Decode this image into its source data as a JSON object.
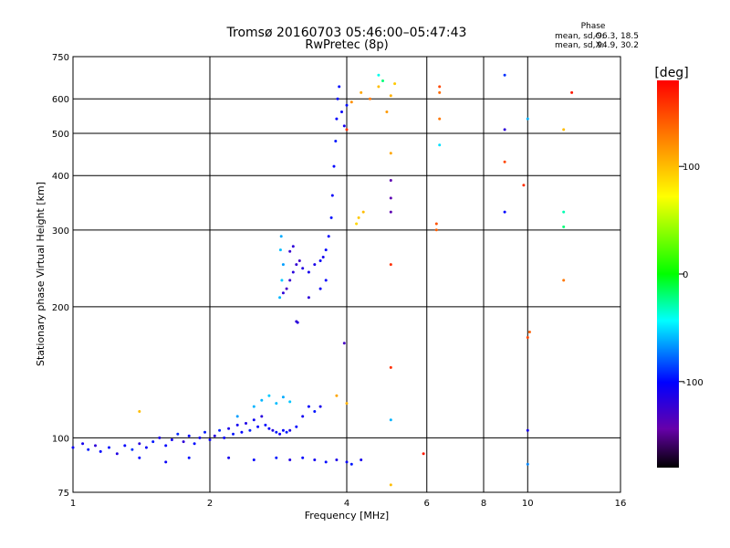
{
  "chart_data": {
    "type": "scatter",
    "title": "Tromsø 20160703 05:46:00–05:47:43",
    "subtitle": "RwPretec (8p)",
    "xlabel": "Frequency [MHz]",
    "ylabel": "Stationary phase Virtual Height [km]",
    "x_scale": "log",
    "y_scale": "log",
    "xlim": [
      1,
      16
    ],
    "ylim": [
      75,
      750
    ],
    "x_ticks": [
      1,
      2,
      4,
      6,
      8,
      10,
      16
    ],
    "x_tick_labels": [
      "1",
      "2",
      "4",
      "6",
      "8",
      "10",
      "16"
    ],
    "y_ticks": [
      75,
      100,
      200,
      300,
      400,
      500,
      600,
      750
    ],
    "y_tick_labels": [
      "75",
      "100",
      "200",
      "300",
      "400",
      "500",
      "600",
      "750"
    ],
    "grid": true,
    "stats": {
      "heading": "Phase",
      "o_label": "mean, sd,O:",
      "o_values": "-96.3, 18.5",
      "x_label": "mean, sd,X:",
      "x_values": "94.9, 30.2"
    },
    "colorbar": {
      "label": "[deg]",
      "range": [
        -180,
        180
      ],
      "ticks": [
        100,
        0,
        -100
      ],
      "tick_labels": [
        "100",
        "0",
        "-100"
      ],
      "colors": [
        "#ff0000",
        "#ff8000",
        "#ffff00",
        "#00ff00",
        "#00ffff",
        "#0000ff",
        "#6600aa",
        "#000000"
      ]
    },
    "series": [
      {
        "role": "E and F1 region O-mode traces (phase ~ -100 deg)",
        "points": [
          [
            1.0,
            95,
            -105
          ],
          [
            1.05,
            97,
            -110
          ],
          [
            1.08,
            94,
            -95
          ],
          [
            1.12,
            96,
            -120
          ],
          [
            1.15,
            93,
            -100
          ],
          [
            1.2,
            95,
            -98
          ],
          [
            1.25,
            92,
            -115
          ],
          [
            1.3,
            96,
            -102
          ],
          [
            1.35,
            94,
            -90
          ],
          [
            1.4,
            97,
            -118
          ],
          [
            1.45,
            95,
            -104
          ],
          [
            1.5,
            98,
            -96
          ],
          [
            1.55,
            100,
            -112
          ],
          [
            1.6,
            96,
            -100
          ],
          [
            1.65,
            99,
            -108
          ],
          [
            1.7,
            102,
            -92
          ],
          [
            1.75,
            98,
            -120
          ],
          [
            1.8,
            101,
            -101
          ],
          [
            1.85,
            97,
            -99
          ],
          [
            1.9,
            100,
            -110
          ],
          [
            1.95,
            103,
            -95
          ],
          [
            2.0,
            99,
            -105
          ],
          [
            2.05,
            101,
            -117
          ],
          [
            2.1,
            104,
            -93
          ],
          [
            2.15,
            100,
            -102
          ],
          [
            2.2,
            105,
            -111
          ],
          [
            2.25,
            102,
            -97
          ],
          [
            2.3,
            107,
            -108
          ],
          [
            2.35,
            103,
            -100
          ],
          [
            2.4,
            108,
            -114
          ],
          [
            2.45,
            104,
            -94
          ],
          [
            2.5,
            110,
            -106
          ],
          [
            2.55,
            106,
            -100
          ],
          [
            2.6,
            112,
            -118
          ],
          [
            2.65,
            107,
            -98
          ],
          [
            2.7,
            105,
            -103
          ],
          [
            2.75,
            104,
            -115
          ],
          [
            2.8,
            103,
            -96
          ],
          [
            2.85,
            102,
            -109
          ],
          [
            2.9,
            104,
            -101
          ],
          [
            2.95,
            103,
            -95
          ],
          [
            3.0,
            104,
            -112
          ],
          [
            3.1,
            106,
            -100
          ],
          [
            3.2,
            112,
            -108
          ],
          [
            3.3,
            118,
            -102
          ],
          [
            3.4,
            115,
            -97
          ],
          [
            3.5,
            118,
            -110
          ],
          [
            1.4,
            90,
            -100
          ],
          [
            1.6,
            88,
            -105
          ],
          [
            1.8,
            90,
            -98
          ],
          [
            2.2,
            90,
            -110
          ],
          [
            2.5,
            89,
            -102
          ],
          [
            2.8,
            90,
            -96
          ],
          [
            3.0,
            89,
            -115
          ],
          [
            3.2,
            90,
            -100
          ],
          [
            3.4,
            89,
            -108
          ],
          [
            3.6,
            88,
            -99
          ],
          [
            3.8,
            89,
            -112
          ],
          [
            4.0,
            88,
            -104
          ],
          [
            4.1,
            87,
            -96
          ],
          [
            4.3,
            89,
            -110
          ],
          [
            2.6,
            122,
            -60
          ],
          [
            2.7,
            125,
            -55
          ],
          [
            2.8,
            120,
            -58
          ],
          [
            2.9,
            124,
            -62
          ],
          [
            3.0,
            121,
            -56
          ],
          [
            2.3,
            112,
            -65
          ],
          [
            2.5,
            118,
            -60
          ],
          [
            2.85,
            210,
            -60
          ],
          [
            2.88,
            230,
            -55
          ],
          [
            2.9,
            250,
            -65
          ],
          [
            2.86,
            270,
            -58
          ],
          [
            2.87,
            290,
            -62
          ],
          [
            2.9,
            215,
            -120
          ],
          [
            2.95,
            220,
            -130
          ],
          [
            3.0,
            230,
            -125
          ],
          [
            3.05,
            240,
            -118
          ],
          [
            3.1,
            250,
            -122
          ],
          [
            3.15,
            255,
            -128
          ],
          [
            3.2,
            245,
            -115
          ],
          [
            3.3,
            240,
            -110
          ],
          [
            3.4,
            250,
            -112
          ],
          [
            3.5,
            255,
            -105
          ],
          [
            3.55,
            260,
            -108
          ],
          [
            3.6,
            270,
            -100
          ],
          [
            3.65,
            290,
            -102
          ],
          [
            3.7,
            320,
            -98
          ],
          [
            3.72,
            360,
            -104
          ],
          [
            3.75,
            420,
            -100
          ],
          [
            3.78,
            480,
            -96
          ],
          [
            3.8,
            540,
            -102
          ],
          [
            3.82,
            600,
            -100
          ],
          [
            3.85,
            640,
            -98
          ],
          [
            3.9,
            560,
            -104
          ],
          [
            3.95,
            520,
            -110
          ],
          [
            4.0,
            580,
            -98
          ],
          [
            3.6,
            230,
            -102
          ],
          [
            3.5,
            220,
            -106
          ],
          [
            3.3,
            210,
            -120
          ],
          [
            3.1,
            185,
            -120
          ],
          [
            3.12,
            184,
            -118
          ],
          [
            3.0,
            268,
            -125
          ],
          [
            3.05,
            275,
            -120
          ]
        ]
      },
      {
        "role": "F region X-mode and scattered echoes (phase ~ +100 deg)",
        "points": [
          [
            1.4,
            115,
            100
          ],
          [
            3.8,
            125,
            110
          ],
          [
            4.0,
            120,
            105
          ],
          [
            4.2,
            310,
            90
          ],
          [
            4.25,
            320,
            95
          ],
          [
            4.35,
            330,
            100
          ],
          [
            4.1,
            590,
            120
          ],
          [
            4.3,
            620,
            110
          ],
          [
            4.5,
            600,
            130
          ],
          [
            4.7,
            640,
            100
          ],
          [
            4.9,
            560,
            115
          ],
          [
            5.0,
            610,
            105
          ],
          [
            5.1,
            650,
            95
          ],
          [
            5.0,
            450,
            110
          ],
          [
            5.0,
            250,
            160
          ],
          [
            5.0,
            145,
            160
          ],
          [
            5.0,
            78,
            100
          ],
          [
            5.9,
            92,
            170
          ],
          [
            6.3,
            300,
            140
          ],
          [
            6.3,
            310,
            145
          ],
          [
            6.4,
            640,
            150
          ],
          [
            6.4,
            540,
            130
          ],
          [
            6.4,
            620,
            135
          ],
          [
            9.8,
            380,
            160
          ],
          [
            10.1,
            175,
            140
          ],
          [
            10.0,
            170,
            150
          ],
          [
            12.0,
            510,
            100
          ],
          [
            12.0,
            230,
            130
          ],
          [
            12.5,
            620,
            170
          ],
          [
            8.9,
            430,
            150
          ],
          [
            4.0,
            510,
            160
          ]
        ]
      },
      {
        "role": "Isolated high-frequency echoes (mixed phase)",
        "points": [
          [
            4.7,
            680,
            -40
          ],
          [
            4.8,
            660,
            -20
          ],
          [
            5.0,
            390,
            -140
          ],
          [
            5.0,
            355,
            -140
          ],
          [
            5.0,
            330,
            -140
          ],
          [
            5.0,
            110,
            -60
          ],
          [
            6.4,
            470,
            -50
          ],
          [
            8.9,
            680,
            -90
          ],
          [
            8.9,
            330,
            -100
          ],
          [
            8.9,
            510,
            -120
          ],
          [
            10.0,
            540,
            -60
          ],
          [
            10.0,
            104,
            -110
          ],
          [
            10.0,
            87,
            -70
          ],
          [
            12.0,
            330,
            -30
          ],
          [
            12.0,
            305,
            -20
          ],
          [
            3.95,
            165,
            -130
          ]
        ]
      }
    ]
  }
}
